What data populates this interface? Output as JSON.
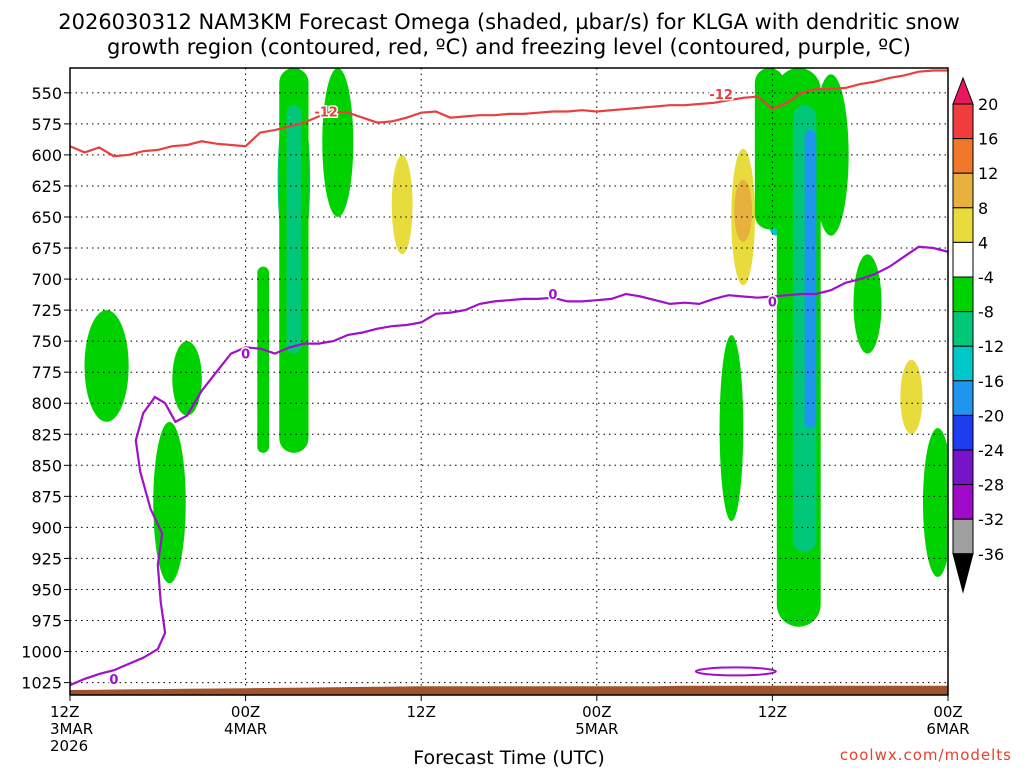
{
  "chart_data": {
    "type": "heatmap",
    "title_line1": "2026030312 NAM3KM Forecast Omega (shaded, µbar/s) for KLGA with dendritic snow",
    "title_line2": "growth region (contoured, red, ºC) and freezing level (contoured, purple, ºC)",
    "xlabel": "Forecast Time (UTC)",
    "ylabel": "",
    "credit": "coolwx.com/modelts",
    "y_scale": "pressure (inverted)",
    "ylim": [
      1035,
      530
    ],
    "y_ticks": [
      550,
      575,
      600,
      625,
      650,
      675,
      700,
      725,
      750,
      775,
      800,
      825,
      850,
      875,
      900,
      925,
      950,
      975,
      1000,
      1025
    ],
    "xlim": [
      0,
      60
    ],
    "x_ticks": [
      {
        "hour": 0,
        "line1": "12Z",
        "line2": "3MAR",
        "line3": "2026"
      },
      {
        "hour": 12,
        "line1": "00Z",
        "line2": "4MAR",
        "line3": ""
      },
      {
        "hour": 24,
        "line1": "12Z",
        "line2": "",
        "line3": ""
      },
      {
        "hour": 36,
        "line1": "00Z",
        "line2": "5MAR",
        "line3": ""
      },
      {
        "hour": 48,
        "line1": "12Z",
        "line2": "",
        "line3": ""
      },
      {
        "hour": 60,
        "line1": "00Z",
        "line2": "6MAR",
        "line3": ""
      }
    ],
    "grid": true,
    "colorbar": {
      "levels": [
        20,
        16,
        12,
        8,
        4,
        -4,
        -8,
        -12,
        -16,
        -20,
        -24,
        -28,
        -32,
        -36
      ],
      "colors": [
        "#e8185a",
        "#f03c3c",
        "#f07828",
        "#e8b03c",
        "#e8dc3c",
        "#ffffff",
        "#00d200",
        "#00c878",
        "#00c8c8",
        "#1e96f0",
        "#1e3cf0",
        "#7814c8",
        "#a00ac8",
        "#a0a0a0",
        "#000000"
      ]
    },
    "contours": {
      "dgz_label": "-12",
      "dgz_color": "#e84040",
      "dgz_top_pressure": [
        [
          0,
          593
        ],
        [
          1,
          598
        ],
        [
          2,
          594
        ],
        [
          3,
          601
        ],
        [
          4,
          600
        ],
        [
          5,
          597
        ],
        [
          6,
          596
        ],
        [
          7,
          593
        ],
        [
          8,
          592
        ],
        [
          9,
          589
        ],
        [
          10,
          591
        ],
        [
          11,
          592
        ],
        [
          12,
          593
        ],
        [
          13,
          582
        ],
        [
          14,
          580
        ],
        [
          15,
          577
        ],
        [
          16,
          574
        ],
        [
          17,
          569
        ],
        [
          18,
          565
        ],
        [
          19,
          566
        ],
        [
          20,
          570
        ],
        [
          21,
          574
        ],
        [
          22,
          573
        ],
        [
          23,
          570
        ],
        [
          24,
          566
        ],
        [
          25,
          565
        ],
        [
          26,
          570
        ],
        [
          27,
          569
        ],
        [
          28,
          568
        ],
        [
          29,
          568
        ],
        [
          30,
          567
        ],
        [
          31,
          567
        ],
        [
          32,
          566
        ],
        [
          33,
          565
        ],
        [
          34,
          565
        ],
        [
          35,
          564
        ],
        [
          36,
          565
        ],
        [
          37,
          564
        ],
        [
          38,
          563
        ],
        [
          39,
          562
        ],
        [
          40,
          561
        ],
        [
          41,
          560
        ],
        [
          42,
          560
        ],
        [
          43,
          559
        ],
        [
          44,
          558
        ],
        [
          45,
          556
        ],
        [
          46,
          554
        ],
        [
          47,
          553
        ],
        [
          48,
          563
        ],
        [
          49,
          558
        ],
        [
          50,
          550
        ],
        [
          51,
          547
        ],
        [
          52,
          547
        ],
        [
          53,
          546
        ],
        [
          54,
          543
        ],
        [
          55,
          541
        ],
        [
          56,
          538
        ],
        [
          57,
          536
        ],
        [
          58,
          533
        ],
        [
          59,
          532
        ],
        [
          60,
          532
        ]
      ],
      "freezing_label": "0",
      "freezing_color": "#a010c8",
      "freezing_level_pressure": [
        [
          0,
          1027
        ],
        [
          1,
          1022
        ],
        [
          2,
          1018
        ],
        [
          3,
          1015
        ],
        [
          4,
          1010
        ],
        [
          5,
          1005
        ],
        [
          6,
          998
        ],
        [
          6.5,
          985
        ],
        [
          6.2,
          960
        ],
        [
          6.0,
          930
        ],
        [
          6.3,
          905
        ],
        [
          5.5,
          885
        ],
        [
          4.8,
          855
        ],
        [
          4.5,
          830
        ],
        [
          5.0,
          808
        ],
        [
          5.8,
          795
        ],
        [
          6.5,
          800
        ],
        [
          7.2,
          815
        ],
        [
          8,
          810
        ],
        [
          9,
          790
        ],
        [
          10,
          775
        ],
        [
          11,
          760
        ],
        [
          12,
          755
        ],
        [
          13,
          756
        ],
        [
          14,
          760
        ],
        [
          15,
          755
        ],
        [
          16,
          752
        ],
        [
          17,
          752
        ],
        [
          18,
          750
        ],
        [
          19,
          745
        ],
        [
          20,
          743
        ],
        [
          21,
          740
        ],
        [
          22,
          738
        ],
        [
          23,
          737
        ],
        [
          24,
          735
        ],
        [
          25,
          728
        ],
        [
          26,
          727
        ],
        [
          27,
          725
        ],
        [
          28,
          720
        ],
        [
          29,
          718
        ],
        [
          30,
          717
        ],
        [
          31,
          716
        ],
        [
          32,
          716
        ],
        [
          33,
          715
        ],
        [
          34,
          718
        ],
        [
          35,
          718
        ],
        [
          36,
          717
        ],
        [
          37,
          716
        ],
        [
          38,
          712
        ],
        [
          39,
          714
        ],
        [
          40,
          717
        ],
        [
          41,
          720
        ],
        [
          42,
          719
        ],
        [
          43,
          720
        ],
        [
          44,
          716
        ],
        [
          45,
          713
        ],
        [
          46,
          714
        ],
        [
          47,
          715
        ],
        [
          48,
          714
        ],
        [
          49,
          713
        ],
        [
          50,
          712
        ],
        [
          51,
          712
        ],
        [
          52,
          709
        ],
        [
          53,
          703
        ],
        [
          54,
          700
        ],
        [
          55,
          696
        ],
        [
          56,
          690
        ],
        [
          57,
          682
        ],
        [
          58,
          674
        ],
        [
          59,
          675
        ],
        [
          60,
          678
        ]
      ]
    },
    "omega_features": [
      {
        "category": "-4 to -8",
        "t": 2.5,
        "p": 770,
        "dt": 2.2,
        "dp": 90
      },
      {
        "category": "-4 to -8",
        "t": 6.8,
        "p": 880,
        "dt": 1.4,
        "dp": 130
      },
      {
        "category": "-4 to -8",
        "t": 8.0,
        "p": 780,
        "dt": 1.2,
        "dp": 60
      },
      {
        "category": "-4 to -8",
        "t": 18.3,
        "p": 590,
        "dt": 1.3,
        "dp": 120
      },
      {
        "category": "-4 to -8",
        "t": 45.2,
        "p": 820,
        "dt": 0.8,
        "dp": 150
      },
      {
        "category": "-4 to -8",
        "t": 52.0,
        "p": 600,
        "dt": 1.6,
        "dp": 130
      },
      {
        "category": "-4 to -8",
        "t": 54.5,
        "p": 720,
        "dt": 1.1,
        "dp": 80
      },
      {
        "category": "-4 to -8",
        "t": 59.3,
        "p": 880,
        "dt": 1.2,
        "dp": 120
      },
      {
        "category": "-8 to -12",
        "t": 15.3,
        "p": 620,
        "dt": 1.4,
        "dp": 150
      },
      {
        "category": "-12 to -16",
        "t": 48.2,
        "p": 610,
        "dt": 1.1,
        "dp": 110
      },
      {
        "category": "-16 to -20",
        "t": 50.5,
        "p": 620,
        "dt": 0.7,
        "dp": 80
      },
      {
        "category": "4 to 8",
        "t": 22.7,
        "p": 640,
        "dt": 0.6,
        "dp": 80
      },
      {
        "category": "4 to 8",
        "t": 46.0,
        "p": 650,
        "dt": 0.8,
        "dp": 110
      },
      {
        "category": "4 to 8",
        "t": 57.5,
        "p": 795,
        "dt": 0.7,
        "dp": 60
      },
      {
        "category": "8 to 12",
        "t": 46.0,
        "p": 645,
        "dt": 0.4,
        "dp": 50
      }
    ]
  }
}
